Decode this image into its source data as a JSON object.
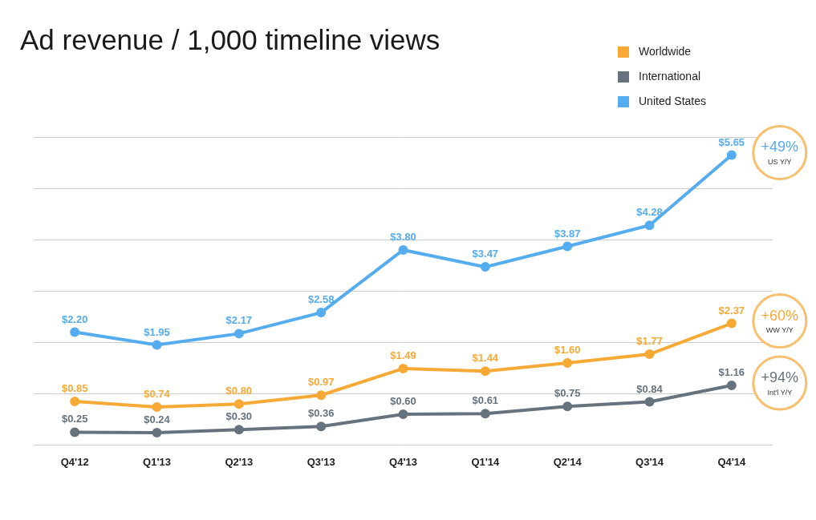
{
  "chart_data": {
    "type": "line",
    "title": "Ad revenue / 1,000 timeline views",
    "categories": [
      "Q4'12",
      "Q1'13",
      "Q2'13",
      "Q3'13",
      "Q4'13",
      "Q1'14",
      "Q2'14",
      "Q3'14",
      "Q4'14"
    ],
    "series": [
      {
        "name": "Worldwide",
        "color": "#f7a935",
        "values": [
          0.85,
          0.74,
          0.8,
          0.97,
          1.49,
          1.44,
          1.6,
          1.77,
          2.37
        ],
        "value_labels": [
          "$0.85",
          "$0.74",
          "$0.80",
          "$0.97",
          "$1.49",
          "$1.44",
          "$1.60",
          "$1.77",
          "$2.37"
        ]
      },
      {
        "name": "International",
        "color": "#66737f",
        "values": [
          0.25,
          0.24,
          0.3,
          0.36,
          0.6,
          0.61,
          0.75,
          0.84,
          1.16
        ],
        "value_labels": [
          "$0.25",
          "$0.24",
          "$0.30",
          "$0.36",
          "$0.60",
          "$0.61",
          "$0.75",
          "$0.84",
          "$1.16"
        ]
      },
      {
        "name": "United States",
        "color": "#55acee",
        "values": [
          2.2,
          1.95,
          2.17,
          2.58,
          3.8,
          3.47,
          3.87,
          4.28,
          5.65
        ],
        "value_labels": [
          "$2.20",
          "$1.95",
          "$2.17",
          "$2.58",
          "$3.80",
          "$3.47",
          "$3.87",
          "$4.28",
          "$5.65"
        ]
      }
    ],
    "annotations": [
      {
        "series": "United States",
        "text": "+49%",
        "subtext": "US Y/Y"
      },
      {
        "series": "Worldwide",
        "text": "+60%",
        "subtext": "WW Y/Y"
      },
      {
        "series": "International",
        "text": "+94%",
        "subtext": "Int'l Y/Y"
      }
    ],
    "ylim": [
      0,
      6
    ],
    "yticks": [
      0,
      1,
      2,
      3,
      4,
      5,
      6
    ],
    "grid": true,
    "legend": "upper right",
    "data_labels": true,
    "tick_labels": "x"
  }
}
